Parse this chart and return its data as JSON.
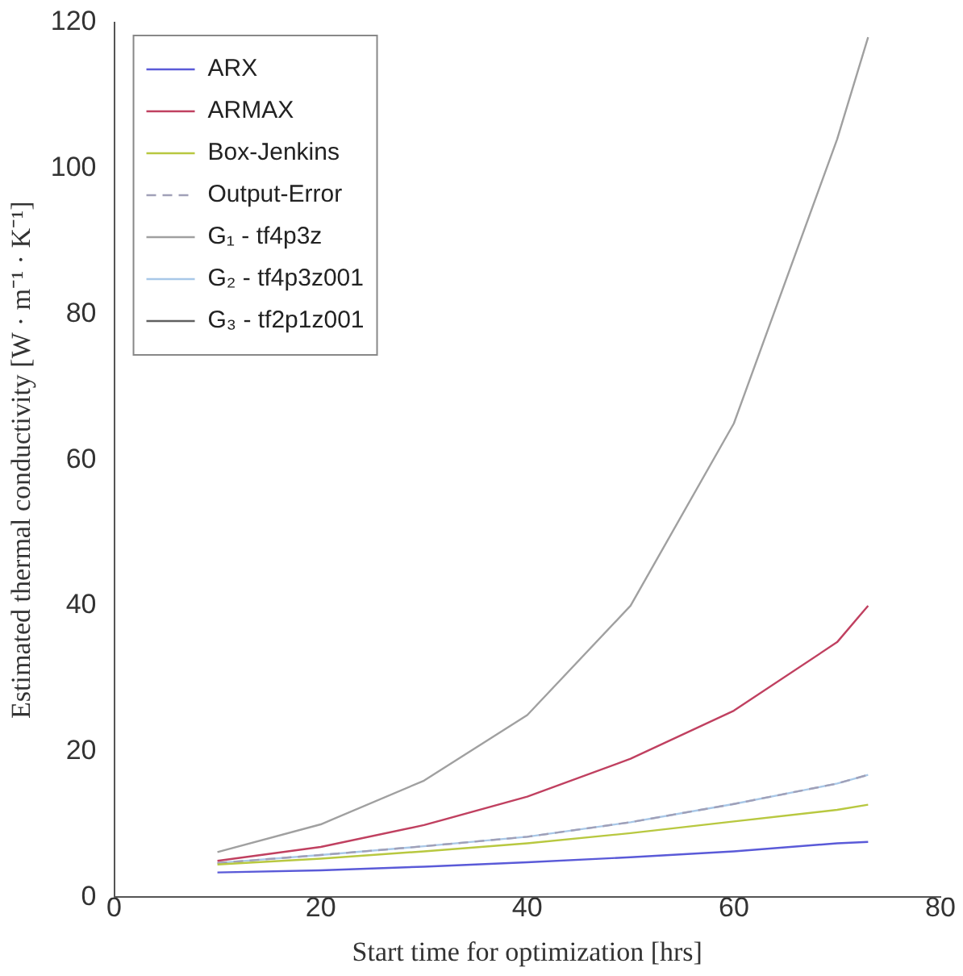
{
  "chart_data": {
    "type": "line",
    "xlabel": "Start time for optimization [hrs]",
    "ylabel": "Estimated thermal conductivity [W · m⁻¹ · K⁻¹]",
    "x": [
      10,
      20,
      30,
      40,
      50,
      60,
      70,
      73
    ],
    "series": [
      {
        "name": "ARX",
        "color": "#5a5ad8",
        "values": [
          3.4,
          3.7,
          4.2,
          4.8,
          5.5,
          6.3,
          7.4,
          7.6
        ]
      },
      {
        "name": "ARMAX",
        "color": "#c04060",
        "values": [
          5,
          6.9,
          9.9,
          13.8,
          19,
          25.6,
          35,
          40
        ]
      },
      {
        "name": "Box-Jenkins",
        "color": "#b8c840",
        "values": [
          4.5,
          5.3,
          6.3,
          7.4,
          8.8,
          10.4,
          12,
          12.7
        ]
      },
      {
        "name": "Output-Error",
        "color": "#a0a0b8",
        "line_style": "dashed",
        "values": [
          4.7,
          5.8,
          7,
          8.3,
          10.3,
          12.8,
          15.6,
          16.8
        ]
      },
      {
        "name": "G₁ - tf4p3z",
        "color": "#a0a0a0",
        "values": [
          6.2,
          10,
          16,
          25,
          40,
          65,
          104,
          118
        ]
      },
      {
        "name": "G₂ - tf4p3z001",
        "color": "#a8c8e8",
        "values": [
          4.7,
          5.8,
          7,
          8.3,
          10.3,
          12.8,
          15.6,
          16.8
        ]
      },
      {
        "name": "G₃ - tf2p1z001",
        "color": "#606060",
        "values": [
          null,
          null,
          null,
          null,
          null,
          null,
          null,
          null
        ]
      }
    ],
    "xlim": [
      0,
      80
    ],
    "xticks": [
      0,
      20,
      40,
      60,
      80
    ],
    "ylim": [
      0,
      120
    ],
    "yticks": [
      0,
      20,
      40,
      60,
      80,
      100,
      120
    ],
    "grid": false,
    "legend": "top left",
    "marker": "none",
    "line_style": "solid"
  }
}
